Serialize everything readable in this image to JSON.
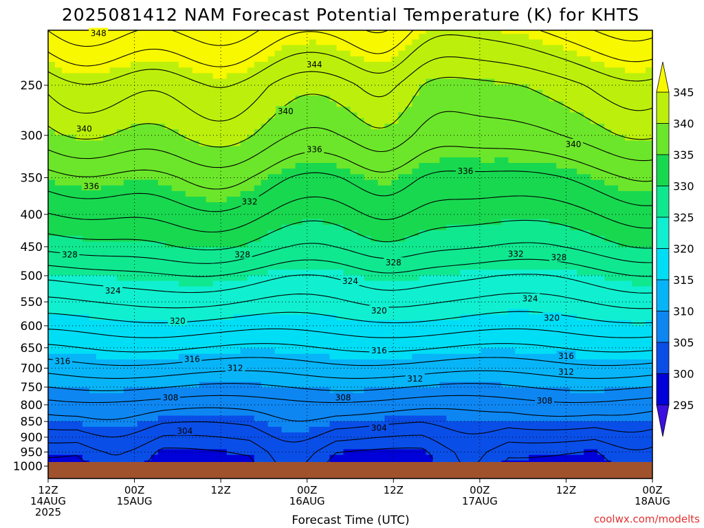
{
  "chart_data": {
    "type": "heatmap",
    "title": "2025081412 NAM Forecast Potential Temperature (K) for KHTS",
    "xlabel": "Forecast Time (UTC)",
    "ylabel": "",
    "credit": "coolwx.com/modelts",
    "x_hours": [
      0,
      12,
      24,
      36,
      48,
      60,
      72,
      84
    ],
    "x_ticks": [
      {
        "hour": 0,
        "line1": "12Z",
        "line2": "14AUG",
        "line3": "2025"
      },
      {
        "hour": 12,
        "line1": "00Z",
        "line2": "15AUG",
        "line3": ""
      },
      {
        "hour": 24,
        "line1": "12Z",
        "line2": "",
        "line3": ""
      },
      {
        "hour": 36,
        "line1": "00Z",
        "line2": "16AUG",
        "line3": ""
      },
      {
        "hour": 48,
        "line1": "12Z",
        "line2": "",
        "line3": ""
      },
      {
        "hour": 60,
        "line1": "00Z",
        "line2": "17AUG",
        "line3": ""
      },
      {
        "hour": 72,
        "line1": "12Z",
        "line2": "",
        "line3": ""
      },
      {
        "hour": 84,
        "line1": "00Z",
        "line2": "18AUG",
        "line3": ""
      }
    ],
    "y_pressure_levels_hPa": [
      "250",
      "300",
      "350",
      "400",
      "450",
      "500",
      "550",
      "600",
      "650",
      "700",
      "750",
      "800",
      "850",
      "900",
      "950",
      "1000"
    ],
    "colorbar": {
      "ticks": [
        "345",
        "340",
        "335",
        "330",
        "325",
        "320",
        "315",
        "310",
        "305",
        "300",
        "295"
      ],
      "bands": [
        {
          "lo": 290,
          "hi": 295,
          "color": "#3c10e0"
        },
        {
          "lo": 295,
          "hi": 300,
          "color": "#0000d8"
        },
        {
          "lo": 300,
          "hi": 305,
          "color": "#0a4ee8"
        },
        {
          "lo": 305,
          "hi": 310,
          "color": "#0d86f2"
        },
        {
          "lo": 310,
          "hi": 315,
          "color": "#08b4f8"
        },
        {
          "lo": 315,
          "hi": 320,
          "color": "#00def6"
        },
        {
          "lo": 320,
          "hi": 325,
          "color": "#10f0d0"
        },
        {
          "lo": 325,
          "hi": 330,
          "color": "#10e890"
        },
        {
          "lo": 330,
          "hi": 335,
          "color": "#18d850"
        },
        {
          "lo": 335,
          "hi": 340,
          "color": "#6ce62a"
        },
        {
          "lo": 340,
          "hi": 345,
          "color": "#bcf00c"
        },
        {
          "lo": 345,
          "hi": 350,
          "color": "#f8f800"
        }
      ]
    },
    "profile_pressure_hPa": [
      200,
      250,
      300,
      350,
      400,
      450,
      500,
      550,
      600,
      650,
      700,
      750,
      800,
      850,
      900,
      950,
      1000
    ],
    "profile_theta_K": [
      348,
      342,
      339,
      335,
      332,
      329,
      325,
      322,
      319,
      316,
      313,
      310,
      307,
      305,
      303,
      301,
      300
    ],
    "contour_labels": [
      {
        "text": "348",
        "hour": 7,
        "p": 207
      },
      {
        "text": "344",
        "hour": 37,
        "p": 232
      },
      {
        "text": "340",
        "hour": 5,
        "p": 293
      },
      {
        "text": "340",
        "hour": 33,
        "p": 275
      },
      {
        "text": "340",
        "hour": 73,
        "p": 310
      },
      {
        "text": "336",
        "hour": 6,
        "p": 361
      },
      {
        "text": "336",
        "hour": 37,
        "p": 316
      },
      {
        "text": "336",
        "hour": 58,
        "p": 342
      },
      {
        "text": "332",
        "hour": 28,
        "p": 382
      },
      {
        "text": "332",
        "hour": 65,
        "p": 462
      },
      {
        "text": "328",
        "hour": 3,
        "p": 463
      },
      {
        "text": "328",
        "hour": 27,
        "p": 463
      },
      {
        "text": "328",
        "hour": 48,
        "p": 477
      },
      {
        "text": "328",
        "hour": 71,
        "p": 468
      },
      {
        "text": "324",
        "hour": 9,
        "p": 528
      },
      {
        "text": "324",
        "hour": 42,
        "p": 510
      },
      {
        "text": "324",
        "hour": 67,
        "p": 544
      },
      {
        "text": "320",
        "hour": 18,
        "p": 590
      },
      {
        "text": "320",
        "hour": 46,
        "p": 568
      },
      {
        "text": "320",
        "hour": 70,
        "p": 583
      },
      {
        "text": "316",
        "hour": 2,
        "p": 683
      },
      {
        "text": "316",
        "hour": 20,
        "p": 678
      },
      {
        "text": "316",
        "hour": 46,
        "p": 657
      },
      {
        "text": "316",
        "hour": 72,
        "p": 670
      },
      {
        "text": "312",
        "hour": 26,
        "p": 700
      },
      {
        "text": "312",
        "hour": 51,
        "p": 728
      },
      {
        "text": "312",
        "hour": 72,
        "p": 710
      },
      {
        "text": "308",
        "hour": 17,
        "p": 780
      },
      {
        "text": "308",
        "hour": 41,
        "p": 780
      },
      {
        "text": "308",
        "hour": 69,
        "p": 788
      },
      {
        "text": "304",
        "hour": 19,
        "p": 880
      },
      {
        "text": "304",
        "hour": 46,
        "p": 870
      }
    ]
  }
}
